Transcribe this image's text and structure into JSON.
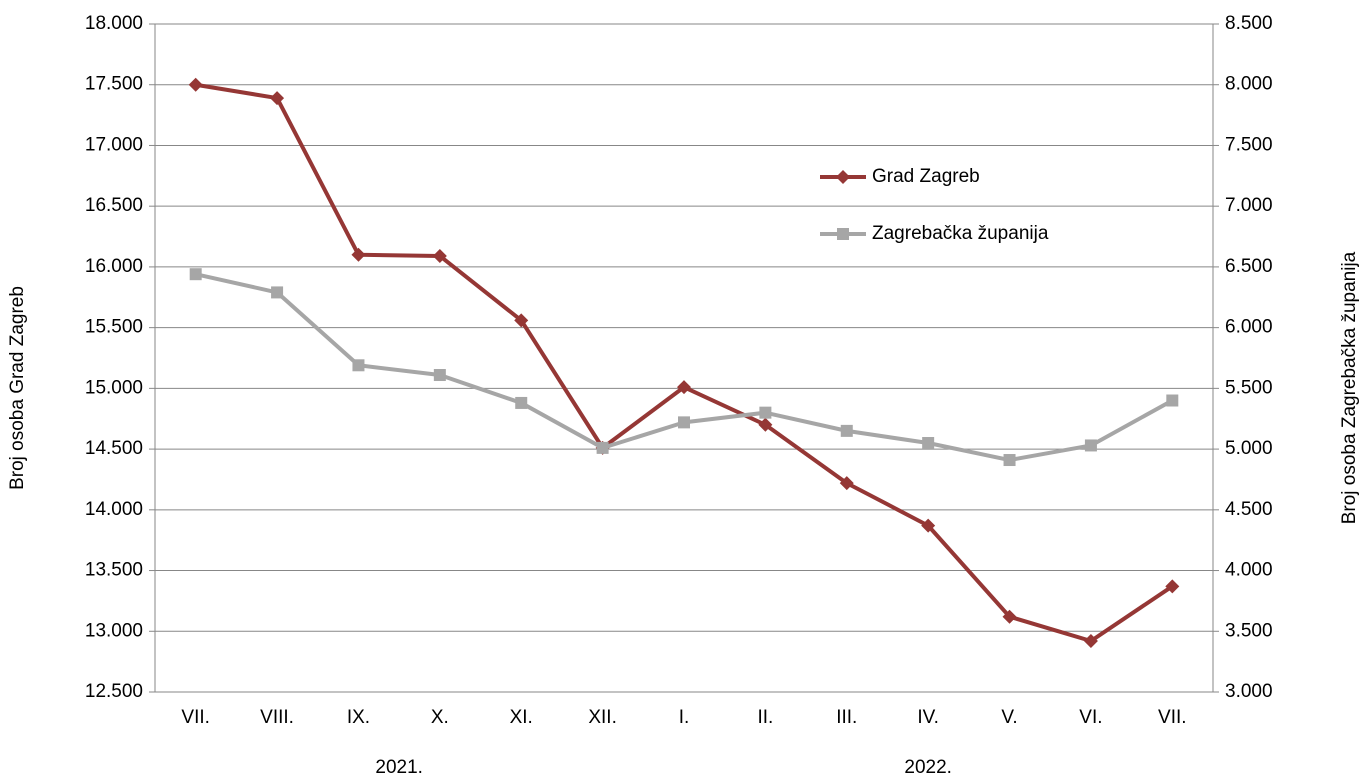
{
  "chart_data": {
    "type": "line",
    "ylabel": "Broj osoba Grad Zagreb",
    "y2label": "Broj osoba Zagrebačka županija",
    "categories": [
      "VII.",
      "VIII.",
      "IX.",
      "X.",
      "XI.",
      "XII.",
      "I.",
      "II.",
      "III.",
      "IV.",
      "V.",
      "VI.",
      "VII."
    ],
    "category_groups": [
      "2021.",
      "2022."
    ],
    "series": [
      {
        "name": "Grad Zagreb",
        "color": "#953735",
        "marker": "diamond",
        "axis": "y",
        "values": [
          17500,
          17390,
          16100,
          16090,
          15560,
          14510,
          15010,
          14700,
          14220,
          13870,
          13120,
          12920,
          13370
        ]
      },
      {
        "name": "Zagrebačka županija",
        "color": "#a6a6a6",
        "marker": "square",
        "axis": "y2",
        "values": [
          6440,
          6290,
          5690,
          5610,
          5380,
          5010,
          5220,
          5300,
          5150,
          5050,
          4910,
          5030,
          5400
        ]
      }
    ],
    "ylim": [
      12500,
      18000
    ],
    "yticks": [
      {
        "value": 12500,
        "label": "12.500"
      },
      {
        "value": 13000,
        "label": "13.000"
      },
      {
        "value": 13500,
        "label": "13.500"
      },
      {
        "value": 14000,
        "label": "14.000"
      },
      {
        "value": 14500,
        "label": "14.500"
      },
      {
        "value": 15000,
        "label": "15.000"
      },
      {
        "value": 15500,
        "label": "15.500"
      },
      {
        "value": 16000,
        "label": "16.000"
      },
      {
        "value": 16500,
        "label": "16.500"
      },
      {
        "value": 17000,
        "label": "17.000"
      },
      {
        "value": 17500,
        "label": "17.500"
      },
      {
        "value": 18000,
        "label": "18.000"
      }
    ],
    "y2lim": [
      3000,
      8500
    ],
    "y2ticks": [
      {
        "value": 3000,
        "label": "3.000"
      },
      {
        "value": 3500,
        "label": "3.500"
      },
      {
        "value": 4000,
        "label": "4.000"
      },
      {
        "value": 4500,
        "label": "4.500"
      },
      {
        "value": 5000,
        "label": "5.000"
      },
      {
        "value": 5500,
        "label": "5.500"
      },
      {
        "value": 6000,
        "label": "6.000"
      },
      {
        "value": 6500,
        "label": "6.500"
      },
      {
        "value": 7000,
        "label": "7.000"
      },
      {
        "value": 7500,
        "label": "7.500"
      },
      {
        "value": 8000,
        "label": "8.000"
      },
      {
        "value": 8500,
        "label": "8.500"
      }
    ],
    "grid": true,
    "legend": "upper right"
  }
}
